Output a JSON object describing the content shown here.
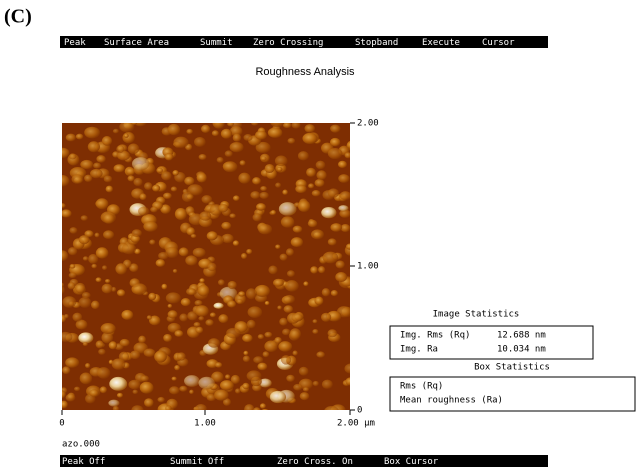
{
  "label": "(C)",
  "menu": [
    "Peak",
    "Surface Area",
    "Summit",
    "Zero Crossing",
    "Stopband",
    "Execute",
    "Cursor"
  ],
  "title": "Roughness Analysis",
  "image_axes": {
    "right_ticks": [
      "2.00",
      "1.00",
      "0"
    ],
    "bottom_ticks": [
      "0",
      "1.00",
      "2.00 µm"
    ]
  },
  "image_statistics": {
    "title": "Image Statistics",
    "rows": [
      [
        "Img. Rms (Rq)",
        "12.688 nm"
      ],
      [
        "Img. Ra",
        "10.034 nm"
      ]
    ]
  },
  "box_statistics": {
    "title": "Box Statistics",
    "rows": [
      "Rms (Rq)",
      "Mean roughness (Ra)"
    ]
  },
  "filename": "azo.000",
  "status": [
    "Peak Off",
    "Summit Off",
    "Zero Cross. On",
    "Box Cursor"
  ]
}
